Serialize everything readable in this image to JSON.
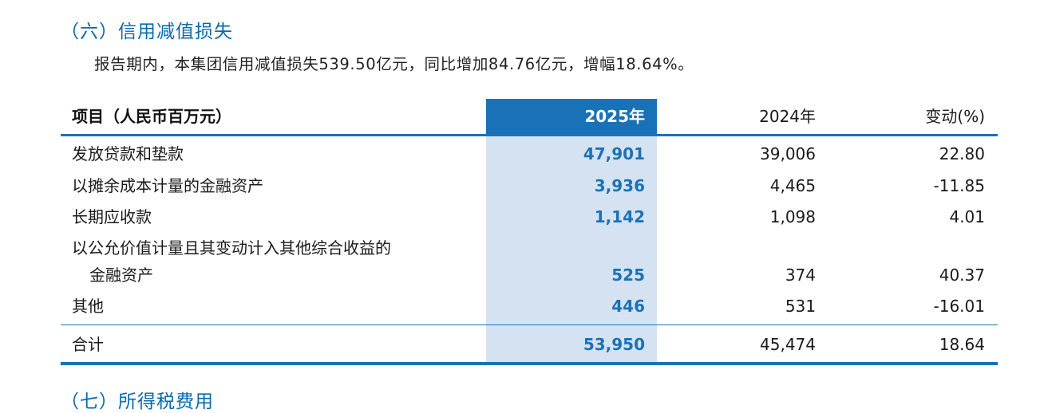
{
  "section": {
    "title": "（六）信用减值损失",
    "summary": "报告期内，本集团信用减值损失539.50亿元，同比增加84.76亿元，增幅18.64%。"
  },
  "table": {
    "headers": {
      "item": "项目（人民币百万元）",
      "y2025": "2025年",
      "y2024": "2024年",
      "change": "变动(%)"
    },
    "rows": [
      {
        "label": "发放贷款和垫款",
        "y2025": "47,901",
        "y2024": "39,006",
        "change": "22.80"
      },
      {
        "label": "以摊余成本计量的金融资产",
        "y2025": "3,936",
        "y2024": "4,465",
        "change": "-11.85"
      },
      {
        "label": "长期应收款",
        "y2025": "1,142",
        "y2024": "1,098",
        "change": "4.01"
      },
      {
        "label": "以公允价值计量且其变动计入其他综合收益的",
        "label2": "金融资产",
        "y2025": "525",
        "y2024": "374",
        "change": "40.37"
      },
      {
        "label": "其他",
        "y2025": "446",
        "y2024": "531",
        "change": "-16.01"
      }
    ],
    "total": {
      "label": "合计",
      "y2025": "53,950",
      "y2024": "45,474",
      "change": "18.64"
    }
  },
  "next_section": {
    "title": "（七）所得税费用"
  }
}
